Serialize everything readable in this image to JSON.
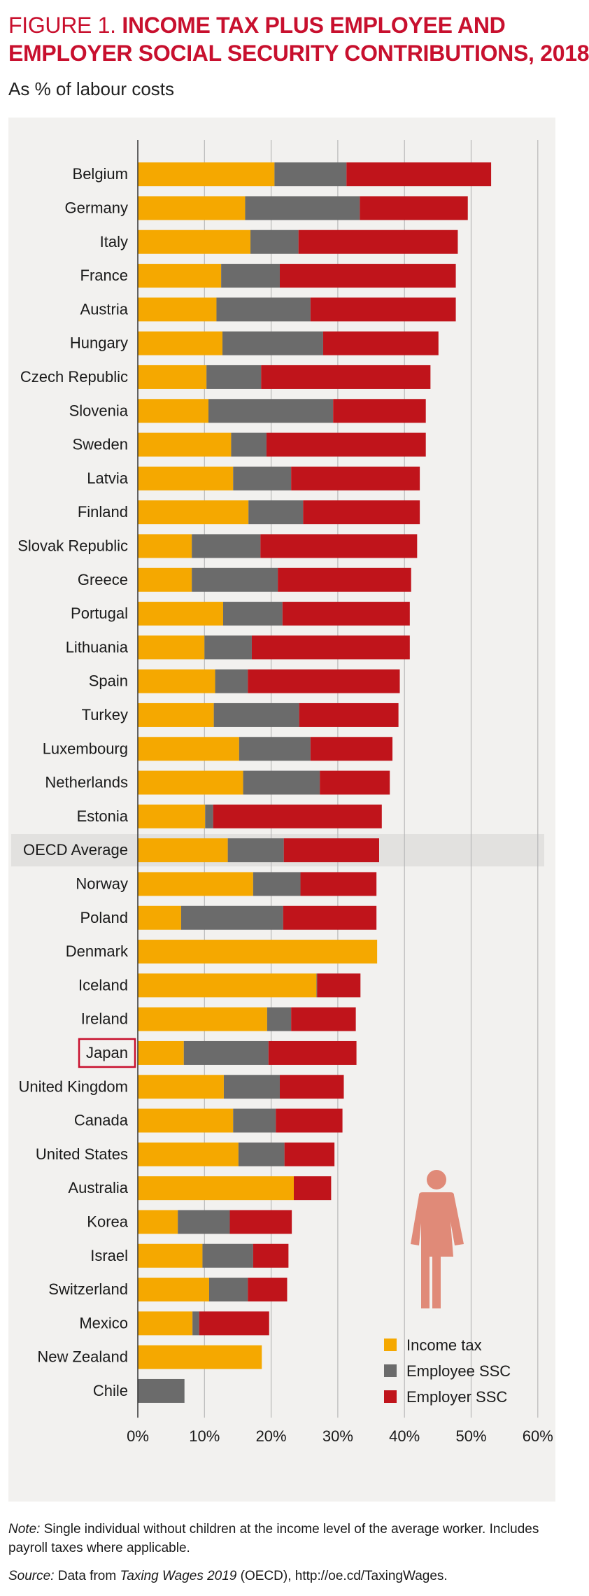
{
  "header": {
    "figure_label": "FIGURE 1.",
    "title_line1": "INCOME TAX PLUS EMPLOYEE AND",
    "title_line2": "EMPLOYER SOCIAL SECURITY CONTRIBUTIONS, 2018",
    "subtitle": "As % of labour costs"
  },
  "footer": {
    "note_label": "Note:",
    "note_text": " Single individual without children at the income level of the average worker. Includes payroll taxes where applicable.",
    "source_label": "Source:",
    "source_pre": " Data from ",
    "source_pub": "Taxing Wages 2019",
    "source_post": " (OECD), http://oe.cd/TaxingWages."
  },
  "colors": {
    "income_tax": "#f5a800",
    "employee_ssc": "#6b6b6b",
    "employer_ssc": "#c0141b",
    "accent_red": "#c8102e",
    "figure_icon": "#e08a78"
  },
  "icon": "person-figure-icon",
  "chart_data": {
    "type": "bar",
    "orientation": "horizontal",
    "stacked": true,
    "xlim": [
      0,
      60
    ],
    "xticks": [
      "0%",
      "10%",
      "20%",
      "30%",
      "40%",
      "50%",
      "60%"
    ],
    "grid": "vertical lines at 10% intervals",
    "legend_position": "bottom-right",
    "highlight": {
      "OECD Average": "shaded row",
      "Japan": "boxed label"
    },
    "categories": [
      "Belgium",
      "Germany",
      "Italy",
      "France",
      "Austria",
      "Hungary",
      "Czech Republic",
      "Slovenia",
      "Sweden",
      "Latvia",
      "Finland",
      "Slovak Republic",
      "Greece",
      "Portugal",
      "Lithuania",
      "Spain",
      "Turkey",
      "Luxembourg",
      "Netherlands",
      "Estonia",
      "OECD Average",
      "Norway",
      "Poland",
      "Denmark",
      "Iceland",
      "Ireland",
      "Japan",
      "United Kingdom",
      "Canada",
      "United States",
      "Australia",
      "Korea",
      "Israel",
      "Switzerland",
      "Mexico",
      "New Zealand",
      "Chile"
    ],
    "series": [
      {
        "name": "Income tax",
        "values": [
          20.5,
          16.1,
          16.9,
          12.5,
          11.8,
          12.7,
          10.3,
          10.6,
          14.0,
          14.3,
          16.6,
          8.1,
          8.1,
          12.8,
          10.0,
          11.6,
          11.4,
          15.2,
          15.8,
          10.1,
          13.5,
          17.3,
          6.5,
          35.9,
          26.8,
          19.4,
          6.9,
          12.9,
          14.3,
          15.1,
          23.4,
          6.0,
          9.7,
          10.7,
          8.2,
          18.6,
          0.0
        ]
      },
      {
        "name": "Employee SSC",
        "values": [
          10.8,
          17.2,
          7.2,
          8.8,
          14.1,
          15.1,
          8.2,
          18.7,
          5.3,
          8.7,
          8.2,
          10.3,
          12.9,
          8.9,
          7.1,
          4.9,
          12.8,
          10.7,
          11.5,
          1.2,
          8.4,
          7.1,
          15.3,
          0.0,
          0.1,
          3.6,
          12.7,
          8.4,
          6.4,
          6.9,
          0.0,
          7.8,
          7.6,
          5.8,
          1.0,
          0.0,
          7.0
        ]
      },
      {
        "name": "Employer SSC",
        "values": [
          21.7,
          16.2,
          23.9,
          26.4,
          21.8,
          17.3,
          25.4,
          13.9,
          23.9,
          19.3,
          17.5,
          23.5,
          20.0,
          19.1,
          23.7,
          22.8,
          14.9,
          12.3,
          10.5,
          25.3,
          14.3,
          11.4,
          14.0,
          0.0,
          6.5,
          9.7,
          13.2,
          9.6,
          10.0,
          7.5,
          5.6,
          9.3,
          5.3,
          5.9,
          10.5,
          0.0,
          0.0
        ]
      }
    ]
  }
}
